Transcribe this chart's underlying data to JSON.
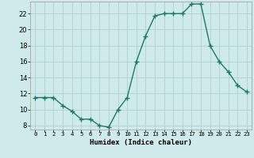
{
  "x": [
    0,
    1,
    2,
    3,
    4,
    5,
    6,
    7,
    8,
    9,
    10,
    11,
    12,
    13,
    14,
    15,
    16,
    17,
    18,
    19,
    20,
    21,
    22,
    23
  ],
  "y": [
    11.5,
    11.5,
    11.5,
    10.5,
    9.8,
    8.8,
    8.8,
    8.0,
    7.8,
    10.0,
    11.5,
    16.0,
    19.2,
    21.7,
    22.0,
    22.0,
    22.0,
    23.2,
    23.2,
    18.0,
    16.0,
    14.7,
    13.0,
    12.2
  ],
  "line_color": "#1a7a6a",
  "marker": "+",
  "marker_size": 4,
  "marker_lw": 1.0,
  "line_width": 1.0,
  "bg_color": "#ceeaea",
  "grid_color": "#b0d0d0",
  "xlabel": "Humidex (Indice chaleur)",
  "ylim": [
    7.5,
    23.5
  ],
  "xlim": [
    -0.5,
    23.5
  ],
  "yticks": [
    8,
    10,
    12,
    14,
    16,
    18,
    20,
    22
  ],
  "xtick_labels": [
    "0",
    "1",
    "2",
    "3",
    "4",
    "5",
    "6",
    "7",
    "8",
    "9",
    "10",
    "11",
    "12",
    "13",
    "14",
    "15",
    "16",
    "17",
    "18",
    "19",
    "20",
    "21",
    "22",
    "23"
  ],
  "ytick_fontsize": 6.0,
  "xtick_fontsize": 5.2,
  "xlabel_fontsize": 6.5
}
